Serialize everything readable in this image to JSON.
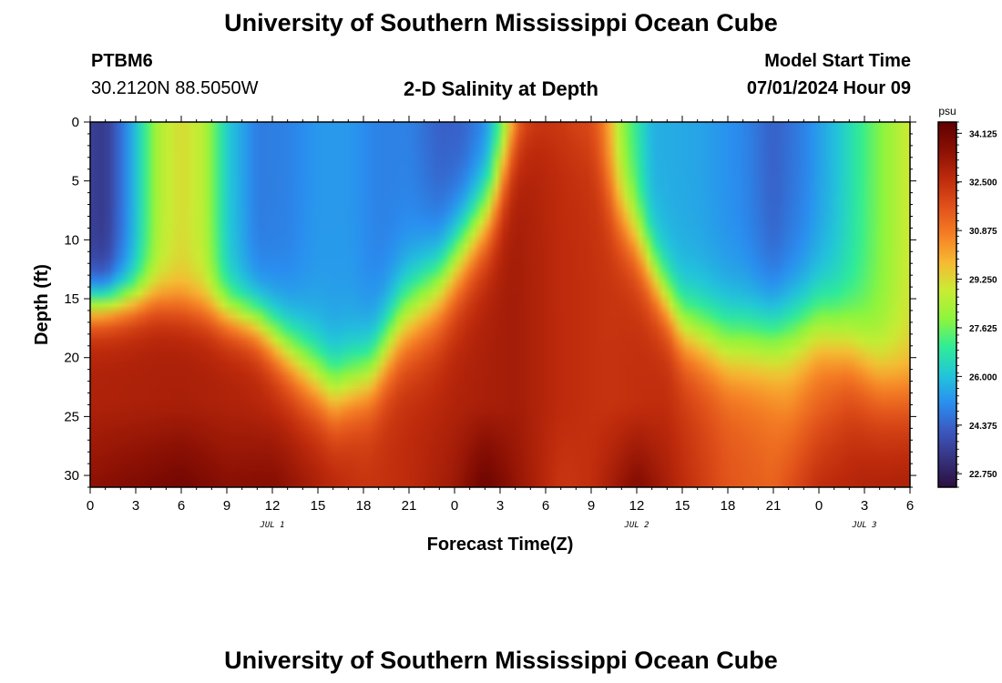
{
  "page": {
    "title": "University of Southern Mississippi Ocean Cube",
    "bottom_title": "University of Southern Mississippi Ocean Cube",
    "station": "PTBM6",
    "coords": "30.2120N  88.5050W",
    "plot_title": "2-D Salinity at Depth",
    "start_label": "Model Start Time",
    "start_value": "07/01/2024 Hour 09"
  },
  "chart_data": {
    "type": "heatmap",
    "title": "2-D Salinity at Depth",
    "xlabel": "Forecast Time(Z)",
    "ylabel": "Depth (ft)",
    "x_ticks": [
      "0",
      "3",
      "6",
      "9",
      "12",
      "15",
      "18",
      "21",
      "0",
      "3",
      "6",
      "9",
      "12",
      "15",
      "18",
      "21",
      "0",
      "3",
      "6"
    ],
    "x_range_hours": [
      0,
      54
    ],
    "date_labels": [
      {
        "label": "JUL 1",
        "hour": 12
      },
      {
        "label": "JUL 2",
        "hour": 36
      },
      {
        "label": "JUL 3",
        "hour": 51
      }
    ],
    "y_ticks": [
      0,
      5,
      10,
      15,
      20,
      25,
      30
    ],
    "ylim": [
      0,
      31
    ],
    "y_inverted": true,
    "colorbar": {
      "unit": "psu",
      "ticks": [
        "34.125",
        "32.500",
        "30.875",
        "29.250",
        "27.625",
        "26.000",
        "24.375",
        "22.750"
      ],
      "range": [
        22.3,
        34.5
      ],
      "stops": [
        "#2a0e3e",
        "#36327e",
        "#3b58c0",
        "#2a8ef0",
        "#22c6d9",
        "#2fec97",
        "#8ef53c",
        "#c9ec34",
        "#f7b933",
        "#f57e25",
        "#e0501a",
        "#bd2a0c",
        "#8a1004",
        "#600000"
      ]
    },
    "fields": {
      "halocline_depth_ft": [
        [
          0,
          15.5
        ],
        [
          4,
          15
        ],
        [
          8,
          16
        ],
        [
          11,
          17
        ],
        [
          13.5,
          20
        ],
        [
          16,
          23
        ],
        [
          18.5,
          21.5
        ],
        [
          20.5,
          17
        ],
        [
          23,
          14
        ],
        [
          25,
          10
        ],
        [
          26.5,
          7
        ],
        [
          28,
          1
        ],
        [
          29.5,
          -2
        ],
        [
          31,
          -2
        ],
        [
          33,
          2
        ],
        [
          34.5,
          7
        ],
        [
          36,
          10
        ],
        [
          37.5,
          14
        ],
        [
          39,
          17.5
        ],
        [
          42,
          19
        ],
        [
          45,
          18.5
        ],
        [
          48,
          17.5
        ],
        [
          50,
          19
        ],
        [
          52,
          21.5
        ],
        [
          54,
          22.5
        ]
      ],
      "halocline_width_ft": [
        [
          0,
          2.6
        ],
        [
          10,
          3
        ],
        [
          14,
          4.5
        ],
        [
          18,
          4.5
        ],
        [
          22,
          5.5
        ],
        [
          26,
          5
        ],
        [
          30,
          5
        ],
        [
          34,
          5
        ],
        [
          38,
          4
        ],
        [
          42,
          5
        ],
        [
          46,
          5.5
        ],
        [
          50,
          5
        ],
        [
          54,
          4.5
        ]
      ],
      "deep_salinity_psu": [
        [
          0,
          32.9
        ],
        [
          6,
          33.0
        ],
        [
          12,
          32.8
        ],
        [
          18,
          32.5
        ],
        [
          24,
          32.9
        ],
        [
          28,
          33.1
        ],
        [
          31,
          32.6
        ],
        [
          34,
          32.4
        ],
        [
          38,
          32.6
        ],
        [
          42,
          31.6
        ],
        [
          46,
          31.0
        ],
        [
          50,
          32.3
        ],
        [
          54,
          32.4
        ]
      ],
      "bottom_salinity_psu": [
        [
          0,
          33.5
        ],
        [
          4,
          33.9
        ],
        [
          6,
          34.1
        ],
        [
          9,
          33.6
        ],
        [
          12,
          33.7
        ],
        [
          15,
          33.0
        ],
        [
          18,
          32.4
        ],
        [
          21,
          32.6
        ],
        [
          24,
          33.2
        ],
        [
          26,
          34.3
        ],
        [
          28,
          33.4
        ],
        [
          31,
          32.3
        ],
        [
          33,
          32.5
        ],
        [
          36,
          33.8
        ],
        [
          39,
          32.6
        ],
        [
          42,
          31.6
        ],
        [
          45,
          31.3
        ],
        [
          48,
          32.6
        ],
        [
          51,
          32.9
        ],
        [
          54,
          33.0
        ]
      ],
      "surface_salinity_psu": [
        [
          0,
          23.6
        ],
        [
          1,
          23.4
        ],
        [
          2.5,
          25.2
        ],
        [
          4.5,
          28.5
        ],
        [
          6,
          29.2
        ],
        [
          7.5,
          28.6
        ],
        [
          9,
          26.2
        ],
        [
          11,
          24.8
        ],
        [
          13,
          24.9
        ],
        [
          15,
          25.3
        ],
        [
          17,
          25.3
        ],
        [
          19,
          24.9
        ],
        [
          21,
          24.9
        ],
        [
          23,
          24.3
        ],
        [
          24.5,
          24.3
        ],
        [
          26,
          24.9
        ],
        [
          27.5,
          27.8
        ],
        [
          28.5,
          30.6
        ],
        [
          30,
          31.2
        ],
        [
          33,
          31.6
        ],
        [
          34,
          30.3
        ],
        [
          35,
          28.0
        ],
        [
          37,
          25.7
        ],
        [
          40,
          25.5
        ],
        [
          43,
          25.0
        ],
        [
          45,
          24.3
        ],
        [
          47,
          24.9
        ],
        [
          49,
          25.9
        ],
        [
          51,
          27.2
        ],
        [
          54,
          29.0
        ]
      ]
    }
  }
}
